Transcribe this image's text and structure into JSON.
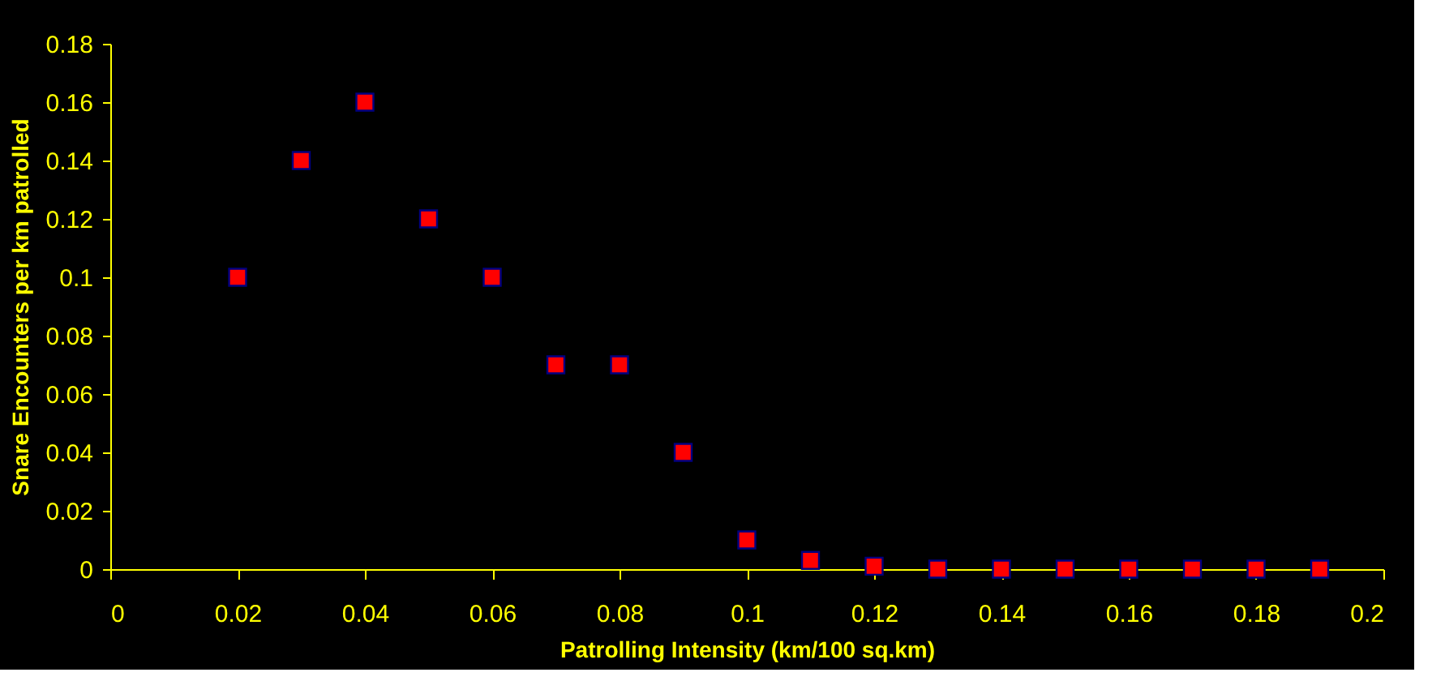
{
  "chart_data": {
    "type": "scatter",
    "xlabel": "Patrolling Intensity (km/100 sq.km)",
    "ylabel": "Snare Encounters per km patrolled",
    "x": [
      0.02,
      0.03,
      0.04,
      0.05,
      0.06,
      0.07,
      0.08,
      0.09,
      0.1,
      0.11,
      0.12,
      0.13,
      0.14,
      0.15,
      0.16,
      0.17,
      0.18,
      0.19
    ],
    "series": [
      {
        "color": "#ff0000",
        "values": [
          0.1,
          0.14,
          0.16,
          0.12,
          0.1,
          0.07,
          0.07,
          0.04,
          0.01,
          0.003,
          0.001,
          0,
          0,
          0,
          0,
          0,
          0,
          0
        ]
      }
    ],
    "xlim": [
      0,
      0.2
    ],
    "xticks": [
      0,
      0.02,
      0.04,
      0.06,
      0.08,
      0.1,
      0.12,
      0.14,
      0.16,
      0.18,
      0.2
    ],
    "ylim": [
      0,
      0.18
    ],
    "yticks": [
      0,
      0.02,
      0.04,
      0.06,
      0.08,
      0.1,
      0.12,
      0.14,
      0.16,
      0.18
    ],
    "marker": "square",
    "grid": false
  }
}
